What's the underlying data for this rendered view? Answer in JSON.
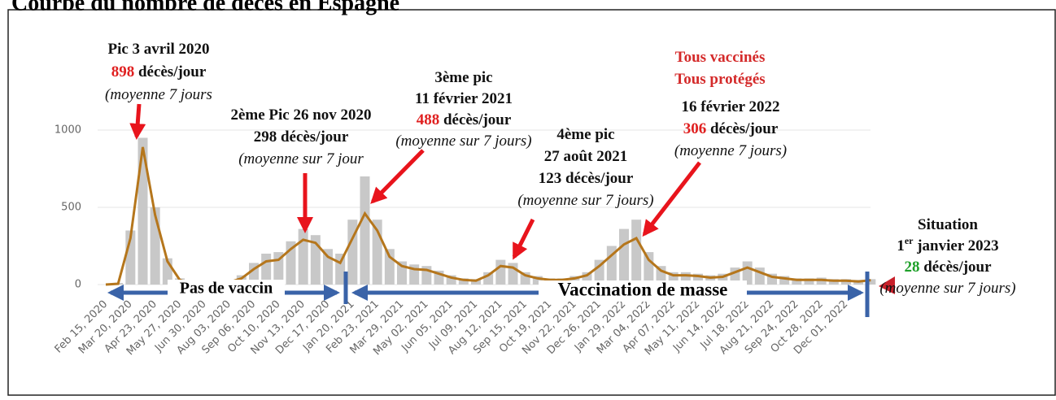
{
  "chart_data": {
    "type": "line",
    "title": "Courbe du nombre de décès en Espagne",
    "categories": [
      "Feb 15, 2020",
      null,
      "Mar 20, 2020",
      null,
      "Apr 23, 2020",
      null,
      "May 27, 2020",
      null,
      "Jun 30, 2020",
      null,
      "Aug 03, 2020",
      null,
      "Sep 06, 2020",
      null,
      "Oct 10, 2020",
      null,
      "Nov 13, 2020",
      null,
      "Dec 17, 2020",
      null,
      "Jan 20, 2021",
      null,
      "Feb 23, 2021",
      null,
      "Mar 29, 2021",
      null,
      "May 02, 2021",
      null,
      "Jun 05, 2021",
      null,
      "Jul 09, 2021",
      null,
      "Aug 12, 2021",
      null,
      "Sep 15, 2021",
      null,
      "Oct 19, 2021",
      null,
      "Nov 22, 2021",
      null,
      "Dec 26, 2021",
      null,
      "Jan 29, 2022",
      null,
      "Mar 04, 2022",
      null,
      "Apr 07, 2022",
      null,
      "May 11, 2022",
      null,
      "Jun 14, 2022",
      null,
      "Jul 18, 2022",
      null,
      "Aug 21, 2022",
      null,
      "Sep 24, 2022",
      null,
      "Oct 28, 2022",
      null,
      "Dec 01, 2022",
      null,
      null
    ],
    "series": [
      {
        "type": "bar",
        "color": "#c8c8c8",
        "values": [
          0,
          10,
          350,
          950,
          500,
          170,
          40,
          8,
          5,
          8,
          20,
          60,
          140,
          200,
          210,
          280,
          360,
          320,
          230,
          200,
          420,
          700,
          420,
          230,
          150,
          130,
          120,
          90,
          60,
          40,
          35,
          80,
          160,
          140,
          80,
          55,
          40,
          40,
          55,
          80,
          160,
          250,
          360,
          420,
          210,
          120,
          80,
          80,
          70,
          60,
          70,
          110,
          150,
          110,
          70,
          55,
          40,
          40,
          45,
          35,
          35,
          30,
          35
        ]
      },
      {
        "type": "line",
        "color": "#b5761c",
        "values": [
          0,
          5,
          300,
          890,
          450,
          150,
          30,
          5,
          3,
          5,
          15,
          40,
          100,
          150,
          160,
          230,
          290,
          270,
          180,
          140,
          300,
          460,
          350,
          180,
          120,
          100,
          95,
          70,
          45,
          30,
          25,
          60,
          120,
          110,
          60,
          40,
          30,
          30,
          40,
          60,
          120,
          190,
          260,
          300,
          160,
          90,
          60,
          60,
          55,
          45,
          50,
          80,
          110,
          80,
          50,
          40,
          30,
          30,
          30,
          25,
          25,
          20,
          28
        ]
      }
    ],
    "ylim": [
      0,
      1000
    ],
    "yticks": [
      0,
      500,
      1000
    ],
    "grid": true,
    "annotations": [
      {
        "lines": [
          [
            {
              "text": "Pic 3 avril 2020"
            }
          ],
          [
            {
              "text": "898",
              "color": "#e02020"
            },
            {
              "text": " décès/jour"
            }
          ],
          [
            {
              "text": "(moyenne 7 jours",
              "italic": true
            }
          ]
        ]
      },
      {
        "lines": [
          [
            {
              "text": "2ème Pic 26 nov 2020"
            }
          ],
          [
            {
              "text": "298 décès/jour"
            }
          ],
          [
            {
              "text": "(moyenne sur 7 jour",
              "italic": true
            }
          ]
        ]
      },
      {
        "lines": [
          [
            {
              "text": "3ème pic"
            }
          ],
          [
            {
              "text": "11 février 2021"
            }
          ],
          [
            {
              "text": "488",
              "color": "#e02020"
            },
            {
              "text": " décès/jour"
            }
          ],
          [
            {
              "text": "(moyenne sur 7  jours)",
              "italic": true
            }
          ]
        ]
      },
      {
        "lines": [
          [
            {
              "text": "4ème pic"
            }
          ],
          [
            {
              "text": "27 août 2021"
            }
          ],
          [
            {
              "text": "123 décès/jour"
            }
          ],
          [
            {
              "text": "(moyenne sur 7 jours)",
              "italic": true
            }
          ]
        ]
      },
      {
        "lines": [
          [
            {
              "text": "Tous vaccinés",
              "color": "#d42a2a"
            }
          ],
          [
            {
              "text": "Tous protégés",
              "color": "#d42a2a"
            }
          ]
        ]
      },
      {
        "lines": [
          [
            {
              "text": "16 février 2022"
            }
          ],
          [
            {
              "text": "306",
              "color": "#e02020"
            },
            {
              "text": " décès/jour"
            }
          ],
          [
            {
              "text": "(moyenne 7 jours)",
              "italic": true
            }
          ]
        ]
      },
      {
        "lines": [
          [
            {
              "text": "Situation"
            }
          ],
          [
            {
              "text": "1"
            },
            {
              "text": "er",
              "sup": true
            },
            {
              "text": " janvier 2023"
            }
          ],
          [
            {
              "text": "28",
              "color": "#1fa02a"
            },
            {
              "text": " décès/jour"
            }
          ],
          [
            {
              "text": "(moyenne sur 7  jours)",
              "italic": true
            }
          ]
        ]
      }
    ],
    "periods": [
      "Pas de vaccin",
      "Vaccination de masse"
    ]
  }
}
